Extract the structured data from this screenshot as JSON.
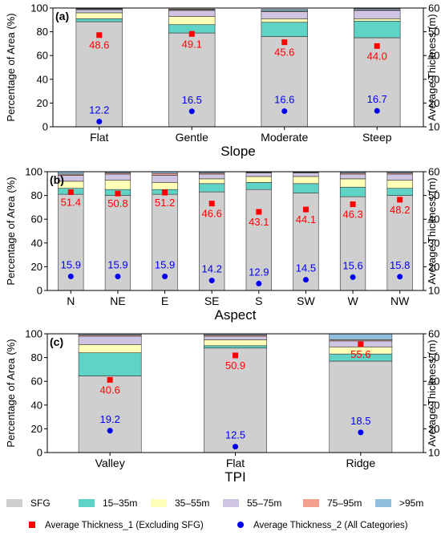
{
  "colors": {
    "SFG": "#cfcfcf",
    "r15_35": "#5fd3c6",
    "r35_55": "#ffffb8",
    "r55_75": "#cfc4e2",
    "r75_95": "#f4a08f",
    "r95": "#8fbfdd",
    "avg1": "#ff0000",
    "avg2": "#0000ee"
  },
  "legend": {
    "items": [
      {
        "label": "SFG",
        "key": "SFG"
      },
      {
        "label": "15–35m",
        "key": "r15_35"
      },
      {
        "label": "35–55m",
        "key": "r35_55"
      },
      {
        "label": "55–75m",
        "key": "r55_75"
      },
      {
        "label": "75–95m",
        "key": "r75_95"
      },
      {
        "label": ">95m",
        "key": "r95"
      }
    ],
    "markers": [
      {
        "label": "Average Thickness_1 (Excluding SFG)",
        "key": "avg1",
        "shape": "square"
      },
      {
        "label": "Average Thickness_2 (All Categories)",
        "key": "avg2",
        "shape": "circle"
      }
    ]
  },
  "chart_data": [
    {
      "type": "bar",
      "panel": "(a)",
      "xlabel": "Slope",
      "ylabel": "Percentage of Area (%)",
      "y2label": "Average Thickness (m)",
      "ylim": [
        0,
        100
      ],
      "y2lim": [
        10,
        60
      ],
      "yticks": [
        0,
        20,
        40,
        60,
        80,
        100
      ],
      "y2ticks": [
        10,
        20,
        30,
        40,
        50,
        60
      ],
      "categories": [
        "Flat",
        "Gentle",
        "Moderate",
        "Steep"
      ],
      "stacked": true,
      "series": [
        {
          "key": "SFG",
          "values": [
            88.5,
            79,
            76,
            75
          ]
        },
        {
          "key": "r15_35",
          "values": [
            2.5,
            7,
            12,
            14
          ]
        },
        {
          "key": "r35_55",
          "values": [
            5,
            7,
            3,
            2
          ]
        },
        {
          "key": "r55_75",
          "values": [
            2.5,
            5,
            6,
            7
          ]
        },
        {
          "key": "r75_95",
          "values": [
            0.5,
            0.7,
            0.5,
            0.5
          ]
        },
        {
          "key": "r95",
          "values": [
            0.5,
            0.5,
            1.5,
            1
          ]
        }
      ],
      "avg1": [
        48.6,
        49.1,
        45.6,
        44.0
      ],
      "avg1_labels": [
        "48.6",
        "49.1",
        "45.6",
        "44.0"
      ],
      "avg2": [
        12.2,
        16.5,
        16.6,
        16.7
      ],
      "avg2_labels": [
        "12.2",
        "16.5",
        "16.6",
        "16.7"
      ]
    },
    {
      "type": "bar",
      "panel": "(b)",
      "xlabel": "Aspect",
      "ylabel": "Percentage of Area (%)",
      "y2label": "Average Thickness (m)",
      "ylim": [
        0,
        100
      ],
      "y2lim": [
        10,
        60
      ],
      "yticks": [
        0,
        20,
        40,
        60,
        80,
        100
      ],
      "y2ticks": [
        10,
        20,
        30,
        40,
        50,
        60
      ],
      "categories": [
        "N",
        "NE",
        "E",
        "SE",
        "S",
        "SW",
        "W",
        "NW"
      ],
      "stacked": true,
      "series": [
        {
          "key": "SFG",
          "values": [
            81,
            80,
            81,
            83,
            85,
            82,
            79,
            80
          ]
        },
        {
          "key": "r15_35",
          "values": [
            5,
            5,
            4,
            7,
            6,
            8,
            8,
            6
          ]
        },
        {
          "key": "r35_55",
          "values": [
            6,
            8,
            6,
            4,
            5,
            6,
            7,
            7
          ]
        },
        {
          "key": "r55_75",
          "values": [
            5,
            5,
            6,
            4,
            3,
            3,
            4,
            5
          ]
        },
        {
          "key": "r75_95",
          "values": [
            1,
            1,
            1.5,
            1,
            0.5,
            0.5,
            1,
            1
          ]
        },
        {
          "key": "r95",
          "values": [
            2,
            1,
            1.5,
            1,
            0.5,
            0.5,
            1,
            1
          ]
        }
      ],
      "avg1": [
        51.4,
        50.8,
        51.2,
        46.6,
        43.1,
        44.1,
        46.3,
        48.2
      ],
      "avg1_labels": [
        "51.4",
        "50.8",
        "51.2",
        "46.6",
        "43.1",
        "44.1",
        "46.3",
        "48.2"
      ],
      "avg2": [
        15.9,
        15.9,
        15.9,
        14.2,
        12.9,
        14.5,
        15.6,
        15.8
      ],
      "avg2_labels": [
        "15.9",
        "15.9",
        "15.9",
        "14.2",
        "12.9",
        "14.5",
        "15.6",
        "15.8"
      ]
    },
    {
      "type": "bar",
      "panel": "(c)",
      "xlabel": "TPI",
      "ylabel": "Percentage of Area (%)",
      "y2label": "Average Thickness (m)",
      "ylim": [
        0,
        100
      ],
      "y2lim": [
        10,
        60
      ],
      "yticks": [
        0,
        20,
        40,
        60,
        80,
        100
      ],
      "y2ticks": [
        10,
        20,
        30,
        40,
        50,
        60
      ],
      "categories": [
        "Valley",
        "Flat",
        "Ridge"
      ],
      "stacked": true,
      "series": [
        {
          "key": "SFG",
          "values": [
            64.5,
            88,
            77
          ]
        },
        {
          "key": "r15_35",
          "values": [
            19.5,
            2,
            6
          ]
        },
        {
          "key": "r35_55",
          "values": [
            7,
            5,
            6
          ]
        },
        {
          "key": "r55_75",
          "values": [
            7,
            3,
            5
          ]
        },
        {
          "key": "r75_95",
          "values": [
            1,
            1,
            1
          ]
        },
        {
          "key": "r95",
          "values": [
            1,
            1,
            5
          ]
        }
      ],
      "avg1": [
        40.6,
        50.9,
        55.6
      ],
      "avg1_labels": [
        "40.6",
        "50.9",
        "55.6"
      ],
      "avg2": [
        19.2,
        12.5,
        18.5
      ],
      "avg2_labels": [
        "19.2",
        "12.5",
        "18.5"
      ]
    }
  ]
}
